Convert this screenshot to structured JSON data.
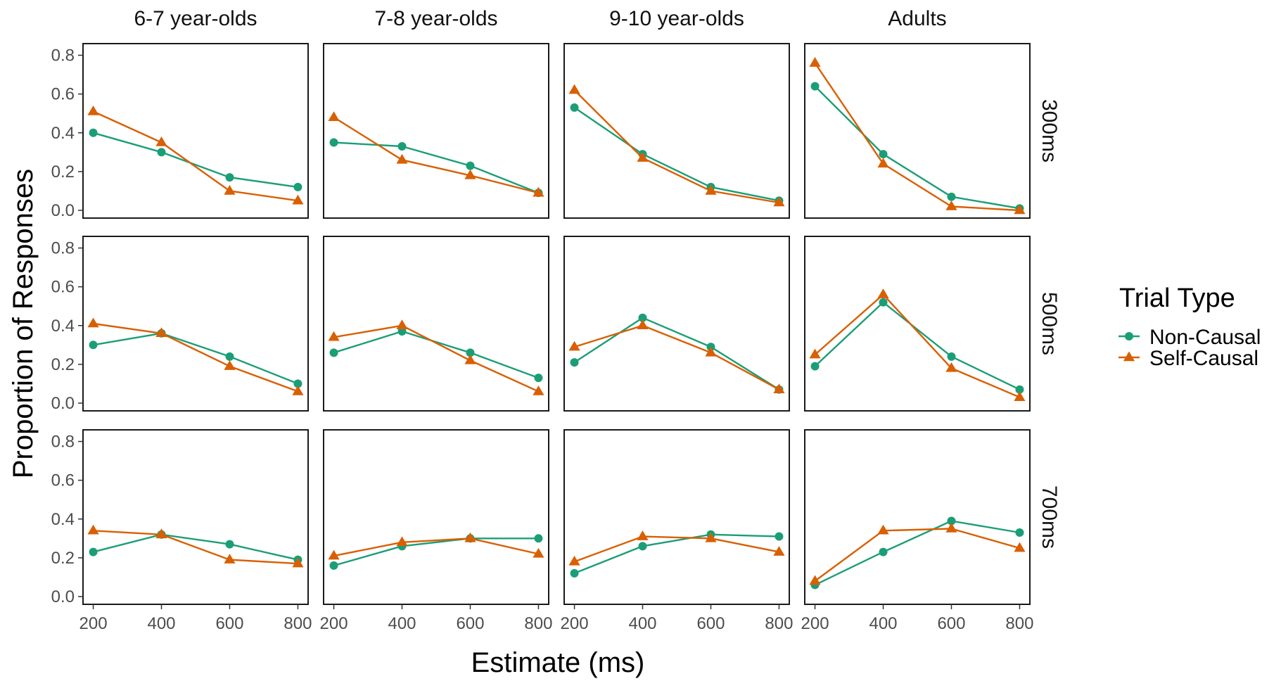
{
  "chart_data": {
    "type": "line",
    "facets": {
      "columns": [
        "6-7 year-olds",
        "7-8 year-olds",
        "9-10 year-olds",
        "Adults"
      ],
      "rows": [
        "300ms",
        "500ms",
        "700ms"
      ]
    },
    "x": [
      200,
      400,
      600,
      800
    ],
    "xticks": [
      "200",
      "400",
      "600",
      "800"
    ],
    "yticks": [
      "0.0",
      "0.2",
      "0.4",
      "0.6",
      "0.8"
    ],
    "xlim": [
      170,
      830
    ],
    "ylim": [
      -0.04,
      0.86
    ],
    "xlabel": "Estimate (ms)",
    "ylabel": "Proportion of Responses",
    "legend": {
      "title": "Trial Type",
      "position": "right",
      "entries": [
        "Non-Causal",
        "Self-Causal"
      ]
    },
    "colors": {
      "Non-Causal": "#1b9e77",
      "Self-Causal": "#d95f02"
    },
    "markers": {
      "Non-Causal": "circle",
      "Self-Causal": "triangle"
    },
    "grid": false,
    "panels": [
      {
        "row": "300ms",
        "col": "6-7 year-olds",
        "series": [
          {
            "name": "Non-Causal",
            "values": [
              0.4,
              0.3,
              0.17,
              0.12
            ]
          },
          {
            "name": "Self-Causal",
            "values": [
              0.51,
              0.35,
              0.1,
              0.05
            ]
          }
        ]
      },
      {
        "row": "300ms",
        "col": "7-8 year-olds",
        "series": [
          {
            "name": "Non-Causal",
            "values": [
              0.35,
              0.33,
              0.23,
              0.09
            ]
          },
          {
            "name": "Self-Causal",
            "values": [
              0.48,
              0.26,
              0.18,
              0.09
            ]
          }
        ]
      },
      {
        "row": "300ms",
        "col": "9-10 year-olds",
        "series": [
          {
            "name": "Non-Causal",
            "values": [
              0.53,
              0.29,
              0.12,
              0.05
            ]
          },
          {
            "name": "Self-Causal",
            "values": [
              0.62,
              0.27,
              0.1,
              0.04
            ]
          }
        ]
      },
      {
        "row": "300ms",
        "col": "Adults",
        "series": [
          {
            "name": "Non-Causal",
            "values": [
              0.64,
              0.29,
              0.07,
              0.01
            ]
          },
          {
            "name": "Self-Causal",
            "values": [
              0.76,
              0.24,
              0.02,
              0.0
            ]
          }
        ]
      },
      {
        "row": "500ms",
        "col": "6-7 year-olds",
        "series": [
          {
            "name": "Non-Causal",
            "values": [
              0.3,
              0.36,
              0.24,
              0.1
            ]
          },
          {
            "name": "Self-Causal",
            "values": [
              0.41,
              0.36,
              0.19,
              0.06
            ]
          }
        ]
      },
      {
        "row": "500ms",
        "col": "7-8 year-olds",
        "series": [
          {
            "name": "Non-Causal",
            "values": [
              0.26,
              0.37,
              0.26,
              0.13
            ]
          },
          {
            "name": "Self-Causal",
            "values": [
              0.34,
              0.4,
              0.22,
              0.06
            ]
          }
        ]
      },
      {
        "row": "500ms",
        "col": "9-10 year-olds",
        "series": [
          {
            "name": "Non-Causal",
            "values": [
              0.21,
              0.44,
              0.29,
              0.07
            ]
          },
          {
            "name": "Self-Causal",
            "values": [
              0.29,
              0.4,
              0.26,
              0.07
            ]
          }
        ]
      },
      {
        "row": "500ms",
        "col": "Adults",
        "series": [
          {
            "name": "Non-Causal",
            "values": [
              0.19,
              0.52,
              0.24,
              0.07
            ]
          },
          {
            "name": "Self-Causal",
            "values": [
              0.25,
              0.56,
              0.18,
              0.03
            ]
          }
        ]
      },
      {
        "row": "700ms",
        "col": "6-7 year-olds",
        "series": [
          {
            "name": "Non-Causal",
            "values": [
              0.23,
              0.32,
              0.27,
              0.19
            ]
          },
          {
            "name": "Self-Causal",
            "values": [
              0.34,
              0.32,
              0.19,
              0.17
            ]
          }
        ]
      },
      {
        "row": "700ms",
        "col": "7-8 year-olds",
        "series": [
          {
            "name": "Non-Causal",
            "values": [
              0.16,
              0.26,
              0.3,
              0.3
            ]
          },
          {
            "name": "Self-Causal",
            "values": [
              0.21,
              0.28,
              0.3,
              0.22
            ]
          }
        ]
      },
      {
        "row": "700ms",
        "col": "9-10 year-olds",
        "series": [
          {
            "name": "Non-Causal",
            "values": [
              0.12,
              0.26,
              0.32,
              0.31
            ]
          },
          {
            "name": "Self-Causal",
            "values": [
              0.18,
              0.31,
              0.3,
              0.23
            ]
          }
        ]
      },
      {
        "row": "700ms",
        "col": "Adults",
        "series": [
          {
            "name": "Non-Causal",
            "values": [
              0.06,
              0.23,
              0.39,
              0.33
            ]
          },
          {
            "name": "Self-Causal",
            "values": [
              0.08,
              0.34,
              0.35,
              0.25
            ]
          }
        ]
      }
    ]
  }
}
